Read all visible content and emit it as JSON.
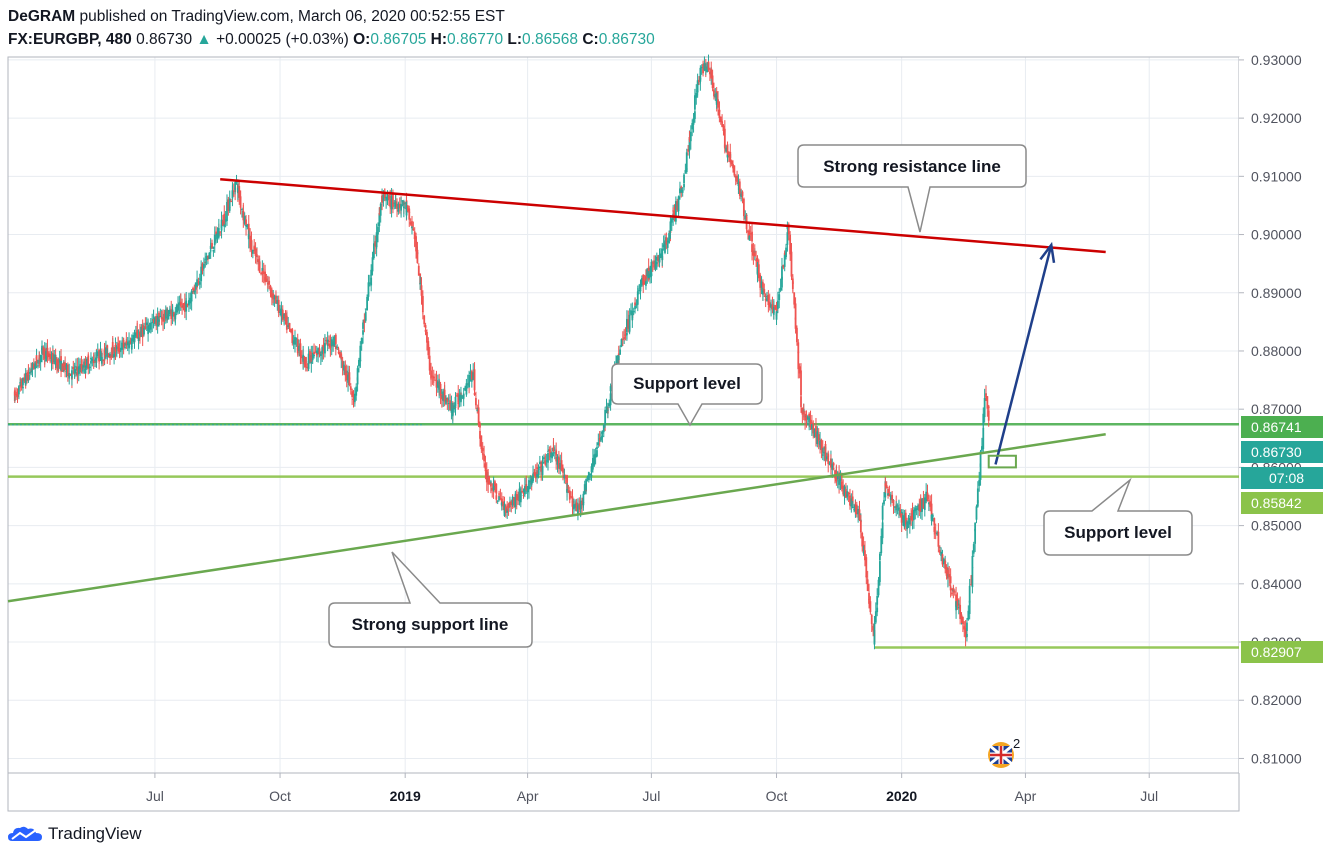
{
  "header": {
    "author": "DeGRAM",
    "published": "published on TradingView.com, March 06, 2020 00:52:55 EST"
  },
  "quote": {
    "symbol": "FX:EURGBP, 480",
    "last": "0.86730",
    "change": "+0.00025 (+0.03%)",
    "open_label": "O:",
    "open": "0.86705",
    "high_label": "H:",
    "high": "0.86770",
    "low_label": "L:",
    "low": "0.86568",
    "close_label": "C:",
    "close": "0.86730"
  },
  "footer": {
    "brand": "TradingView"
  },
  "colors": {
    "up": "#26a69a",
    "down": "#ef5350",
    "resistance": "#cc0000",
    "support": "#6aa84f",
    "arrow": "#1f3f8a",
    "grid": "#e8ecf1"
  },
  "chart_data": {
    "type": "candlestick",
    "symbol": "FX:EURGBP",
    "interval": "480",
    "ylim": [
      0.8075,
      0.9305
    ],
    "y_ticks": [
      "0.93000",
      "0.92000",
      "0.91000",
      "0.90000",
      "0.89000",
      "0.88000",
      "0.87000",
      "0.86000",
      "0.85000",
      "0.84000",
      "0.83000",
      "0.82000",
      "0.81000"
    ],
    "x_ticks": [
      {
        "label": "Jul",
        "bold": false,
        "date": "2018-07-01"
      },
      {
        "label": "Oct",
        "bold": false,
        "date": "2018-10-01"
      },
      {
        "label": "2019",
        "bold": true,
        "date": "2019-01-01"
      },
      {
        "label": "Apr",
        "bold": false,
        "date": "2019-04-01"
      },
      {
        "label": "Jul",
        "bold": false,
        "date": "2019-07-01"
      },
      {
        "label": "Oct",
        "bold": false,
        "date": "2019-10-01"
      },
      {
        "label": "2020",
        "bold": true,
        "date": "2020-01-01"
      },
      {
        "label": "Apr",
        "bold": false,
        "date": "2020-04-01"
      },
      {
        "label": "Jul",
        "bold": false,
        "date": "2020-07-01"
      }
    ],
    "price_path": [
      [
        "2018-03-20",
        0.872
      ],
      [
        "2018-04-10",
        0.88
      ],
      [
        "2018-05-01",
        0.876
      ],
      [
        "2018-05-20",
        0.879
      ],
      [
        "2018-06-10",
        0.881
      ],
      [
        "2018-07-01",
        0.885
      ],
      [
        "2018-07-25",
        0.888
      ],
      [
        "2018-08-20",
        0.902
      ],
      [
        "2018-08-30",
        0.909
      ],
      [
        "2018-09-10",
        0.898
      ],
      [
        "2018-10-01",
        0.887
      ],
      [
        "2018-10-20",
        0.878
      ],
      [
        "2018-11-10",
        0.882
      ],
      [
        "2018-11-25",
        0.872
      ],
      [
        "2018-12-05",
        0.89
      ],
      [
        "2018-12-15",
        0.906
      ],
      [
        "2019-01-01",
        0.905
      ],
      [
        "2019-01-08",
        0.9
      ],
      [
        "2019-01-20",
        0.876
      ],
      [
        "2019-02-05",
        0.87
      ],
      [
        "2019-02-20",
        0.876
      ],
      [
        "2019-03-01",
        0.859
      ],
      [
        "2019-03-15",
        0.853
      ],
      [
        "2019-03-30",
        0.856
      ],
      [
        "2019-04-20",
        0.863
      ],
      [
        "2019-05-08",
        0.852
      ],
      [
        "2019-05-25",
        0.865
      ],
      [
        "2019-06-10",
        0.882
      ],
      [
        "2019-06-25",
        0.892
      ],
      [
        "2019-07-10",
        0.897
      ],
      [
        "2019-07-25",
        0.909
      ],
      [
        "2019-08-05",
        0.927
      ],
      [
        "2019-08-12",
        0.93
      ],
      [
        "2019-08-25",
        0.915
      ],
      [
        "2019-09-05",
        0.907
      ],
      [
        "2019-09-20",
        0.891
      ],
      [
        "2019-10-01",
        0.886
      ],
      [
        "2019-10-10",
        0.901
      ],
      [
        "2019-10-20",
        0.87
      ],
      [
        "2019-11-01",
        0.865
      ],
      [
        "2019-11-15",
        0.858
      ],
      [
        "2019-12-01",
        0.852
      ],
      [
        "2019-12-12",
        0.83
      ],
      [
        "2019-12-20",
        0.857
      ],
      [
        "2020-01-05",
        0.85
      ],
      [
        "2020-01-20",
        0.855
      ],
      [
        "2020-02-01",
        0.844
      ],
      [
        "2020-02-18",
        0.831
      ],
      [
        "2020-02-28",
        0.86
      ],
      [
        "2020-03-03",
        0.873
      ],
      [
        "2020-03-06",
        0.8673
      ]
    ],
    "horizontal_lines": [
      {
        "name": "support-level-upper",
        "y": 0.86741,
        "color": "#4caf50"
      },
      {
        "name": "support-level-lower",
        "y": 0.85842,
        "color": "#8bc34a"
      },
      {
        "name": "low-level",
        "y": 0.82907,
        "color": "#8bc34a"
      }
    ],
    "trend_lines": [
      {
        "name": "strong-resistance-line",
        "from": [
          "2018-08-18",
          0.9095
        ],
        "to": [
          "2020-05-30",
          0.897
        ],
        "color": "#cc0000"
      },
      {
        "name": "strong-support-line",
        "from": [
          "2018-03-15",
          0.837
        ],
        "to": [
          "2020-05-30",
          0.8657
        ],
        "color": "#6aa84f"
      }
    ],
    "forecast_arrow": {
      "from": [
        "2020-03-10",
        0.8605
      ],
      "to": [
        "2020-04-20",
        0.8982
      ]
    },
    "price_tags": [
      {
        "value": "0.86741",
        "color": "#4caf50"
      },
      {
        "value": "0.86730",
        "color": "#26a69a"
      },
      {
        "value": "07:08",
        "color": "#26a69a"
      },
      {
        "value": "0.85842",
        "color": "#8bc34a"
      },
      {
        "value": "0.82907",
        "color": "#8bc34a"
      }
    ],
    "annotations": [
      {
        "text": "Strong resistance line"
      },
      {
        "text": "Support level"
      },
      {
        "text": "Support level"
      },
      {
        "text": "Strong support line"
      }
    ],
    "events_badge": "2"
  }
}
